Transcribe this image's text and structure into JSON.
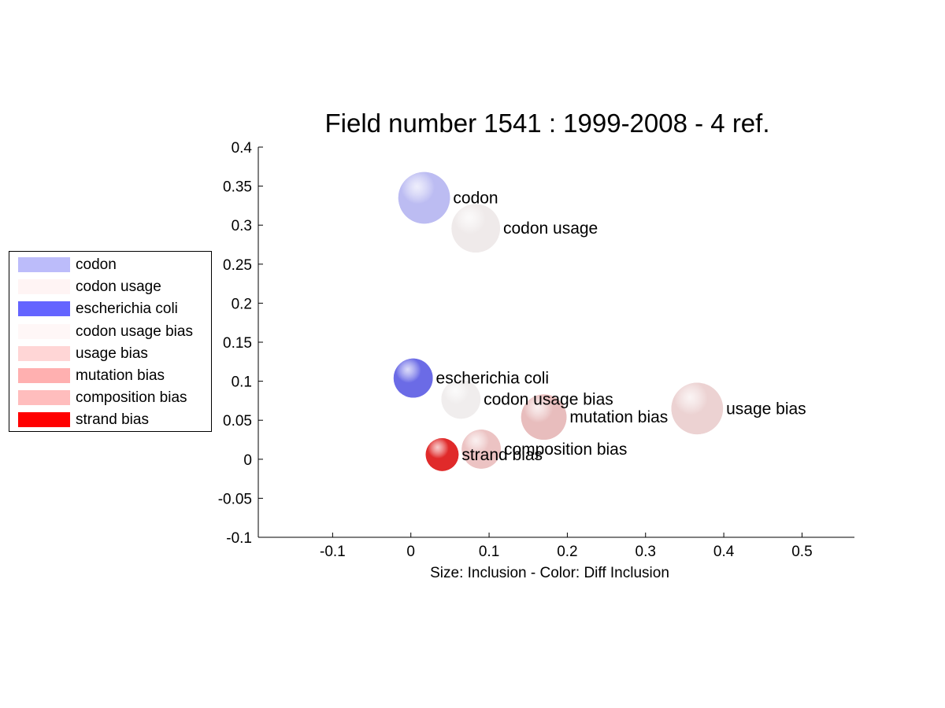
{
  "chart_data": {
    "type": "scatter",
    "title": "Field number 1541 : 1999-2008  - 4 ref.",
    "xlabel": "Size: Inclusion - Color: Diff Inclusion",
    "ylabel": "",
    "xlim": [
      -0.195,
      0.567
    ],
    "ylim": [
      -0.1,
      0.4
    ],
    "xticks": [
      -0.1,
      0,
      0.1,
      0.2,
      0.3,
      0.4,
      0.5
    ],
    "xtick_labels": [
      "-0.1",
      "0",
      "0.1",
      "0.2",
      "0.3",
      "0.4",
      "0.5"
    ],
    "yticks": [
      -0.1,
      -0.05,
      0,
      0.05,
      0.1,
      0.15,
      0.2,
      0.25,
      0.3,
      0.35,
      0.4
    ],
    "ytick_labels": [
      "-0.1",
      "-0.05",
      "0",
      "0.05",
      "0.1",
      "0.15",
      "0.2",
      "0.25",
      "0.3",
      "0.35",
      "0.4"
    ],
    "grid": false,
    "legend_position": "left, outside plot",
    "points": [
      {
        "label": "codon",
        "x": 0.017,
        "y": 0.335,
        "size": 0.033,
        "color": "#bcbcf2"
      },
      {
        "label": "codon usage",
        "x": 0.083,
        "y": 0.296,
        "size": 0.031,
        "color": "#efeaea"
      },
      {
        "label": "escherichia coli",
        "x": 0.003,
        "y": 0.104,
        "size": 0.025,
        "color": "#6b6be6"
      },
      {
        "label": "codon usage bias",
        "x": 0.064,
        "y": 0.077,
        "size": 0.025,
        "color": "#f0eded"
      },
      {
        "label": "usage bias",
        "x": 0.366,
        "y": 0.065,
        "size": 0.033,
        "color": "#ecd2d2"
      },
      {
        "label": "mutation bias",
        "x": 0.17,
        "y": 0.054,
        "size": 0.029,
        "color": "#e8bdbd"
      },
      {
        "label": "composition bias",
        "x": 0.09,
        "y": 0.013,
        "size": 0.025,
        "color": "#ecc3c3"
      },
      {
        "label": "strand bias",
        "x": 0.04,
        "y": 0.006,
        "size": 0.021,
        "color": "#e02a2a"
      }
    ],
    "legend": [
      {
        "label": "codon",
        "color": "#bcbcfa"
      },
      {
        "label": "codon usage",
        "color": "#fff4f4"
      },
      {
        "label": "escherichia coli",
        "color": "#6464ff"
      },
      {
        "label": "codon usage bias",
        "color": "#fff7f7"
      },
      {
        "label": "usage bias",
        "color": "#ffd6d6"
      },
      {
        "label": "mutation bias",
        "color": "#ffb0b0"
      },
      {
        "label": "composition bias",
        "color": "#ffbdbd"
      },
      {
        "label": "strand bias",
        "color": "#ff0000"
      }
    ]
  }
}
